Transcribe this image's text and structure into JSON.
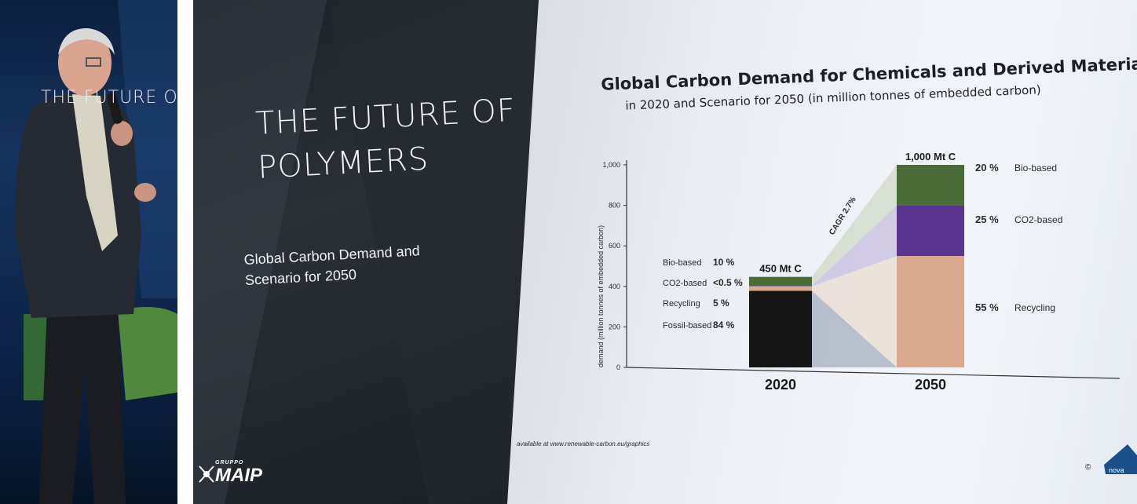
{
  "left_photo": {
    "stage_text": "THE FUTURE OF"
  },
  "slide": {
    "title_line1": "THE FUTURE OF",
    "title_line2": "POLYMERS",
    "subtitle_line1": "Global Carbon Demand and",
    "subtitle_line2": "Scenario for 2050",
    "logo_small": "GRUPPO",
    "logo_big": "MAIP"
  },
  "screen": {
    "title": "Global Carbon Demand for Chemicals and Derived Materials",
    "subtitle": "in 2020 and Scenario for 2050 (in million tonnes of embedded carbon)",
    "source": "available at www.renewable-carbon.eu/graphics",
    "copyright_mark": "©",
    "corner_logo": "nova"
  },
  "chart_data": {
    "type": "bar",
    "stacked": true,
    "categories": [
      "2020",
      "2050"
    ],
    "ylabel": "demand (million tonnes of embedded carbon)",
    "ylim": [
      0,
      1000
    ],
    "yticks": [
      "0",
      "200",
      "400",
      "600",
      "800",
      "1,000"
    ],
    "totals": [
      "450 Mt C",
      "1,000 Mt C"
    ],
    "cagr_label": "CAGR 2.7%",
    "series": [
      {
        "name": "Fossil-based",
        "values": [
          378,
          0
        ],
        "color": "#151515"
      },
      {
        "name": "Recycling",
        "values": [
          22,
          550
        ],
        "color": "#d9a88e"
      },
      {
        "name": "CO2-based",
        "values": [
          2,
          250
        ],
        "color": "#5a3590"
      },
      {
        "name": "Bio-based",
        "values": [
          45,
          200
        ],
        "color": "#4a6a38"
      }
    ],
    "labels_2020": [
      {
        "name": "Bio-based",
        "pct": "10 %"
      },
      {
        "name": "CO2-based",
        "pct": "<0.5 %"
      },
      {
        "name": "Recycling",
        "pct": "5 %"
      },
      {
        "name": "Fossil-based",
        "pct": "84 %"
      }
    ],
    "labels_2050": [
      {
        "pct": "20 %",
        "name": "Bio-based"
      },
      {
        "pct": "25 %",
        "name": "CO2-based"
      },
      {
        "pct": "55 %",
        "name": "Recycling"
      }
    ]
  }
}
